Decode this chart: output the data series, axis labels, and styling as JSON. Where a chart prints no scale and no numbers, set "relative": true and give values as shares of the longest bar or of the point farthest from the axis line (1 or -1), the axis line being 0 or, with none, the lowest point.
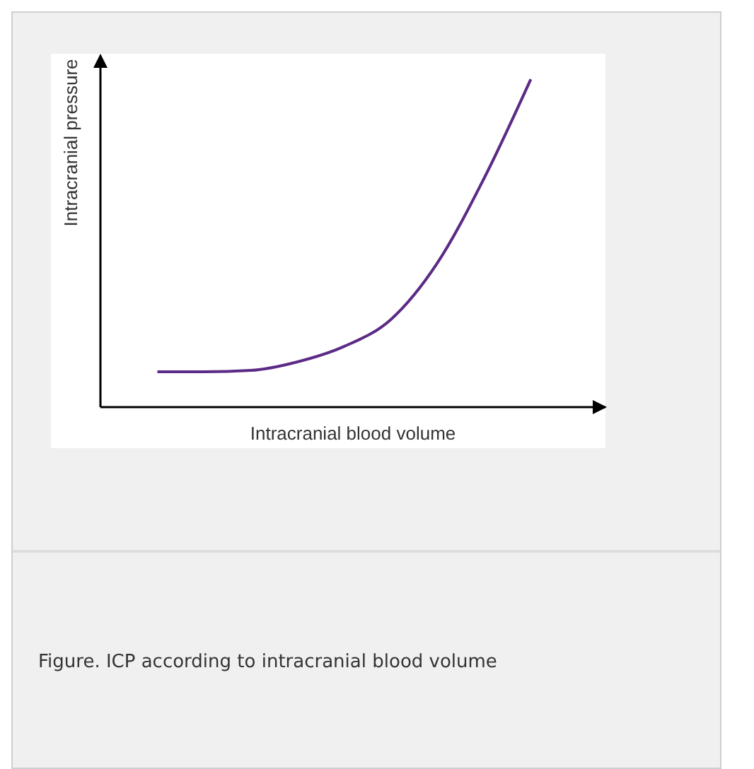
{
  "chart_data": {
    "type": "line",
    "relative": true,
    "xlabel": "Intracranial blood volume",
    "ylabel": "Intracranial pressure",
    "categories": [
      null,
      null,
      null,
      null,
      null,
      null,
      null,
      null,
      null
    ],
    "series": [
      {
        "color": "#5b2a86",
        "values": [
          0.108,
          0.108,
          0.112,
          0.138,
          0.185,
          0.267,
          0.44,
          0.698,
          1
        ]
      }
    ],
    "annotations": [
      "Figure. ICP according to intracranial blood volume"
    ]
  }
}
